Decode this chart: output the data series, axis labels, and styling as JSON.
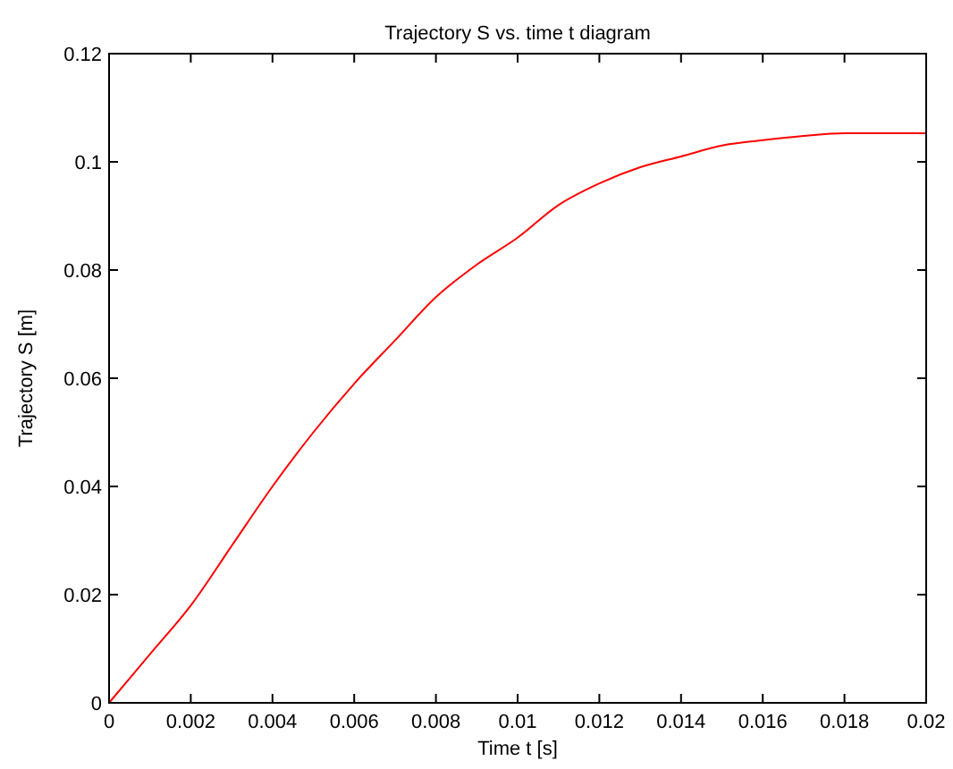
{
  "chart_data": {
    "type": "line",
    "title": "Trajectory S vs. time t diagram",
    "xlabel": "Time t [s]",
    "ylabel": "Trajectory S [m]",
    "x": [
      0,
      0.001,
      0.002,
      0.003,
      0.004,
      0.005,
      0.006,
      0.007,
      0.008,
      0.009,
      0.01,
      0.011,
      0.012,
      0.013,
      0.014,
      0.015,
      0.016,
      0.017,
      0.018,
      0.019,
      0.02
    ],
    "series": [
      {
        "color": "#ff0000",
        "values": [
          0,
          0.009,
          0.018,
          0.029,
          0.04,
          0.05,
          0.059,
          0.067,
          0.075,
          0.081,
          0.086,
          0.092,
          0.096,
          0.099,
          0.101,
          0.103,
          0.104,
          0.1048,
          0.1053,
          0.1053,
          0.1053
        ]
      }
    ],
    "xlim": [
      0,
      0.02
    ],
    "xticks": [
      0,
      0.002,
      0.004,
      0.006,
      0.008,
      0.01,
      0.012,
      0.014,
      0.016,
      0.018,
      0.02
    ],
    "ylim": [
      0,
      0.12
    ],
    "yticks": [
      0,
      0.02,
      0.04,
      0.06,
      0.08,
      0.1,
      0.12
    ],
    "grid": false,
    "marker": "none",
    "line_style": "solid"
  }
}
